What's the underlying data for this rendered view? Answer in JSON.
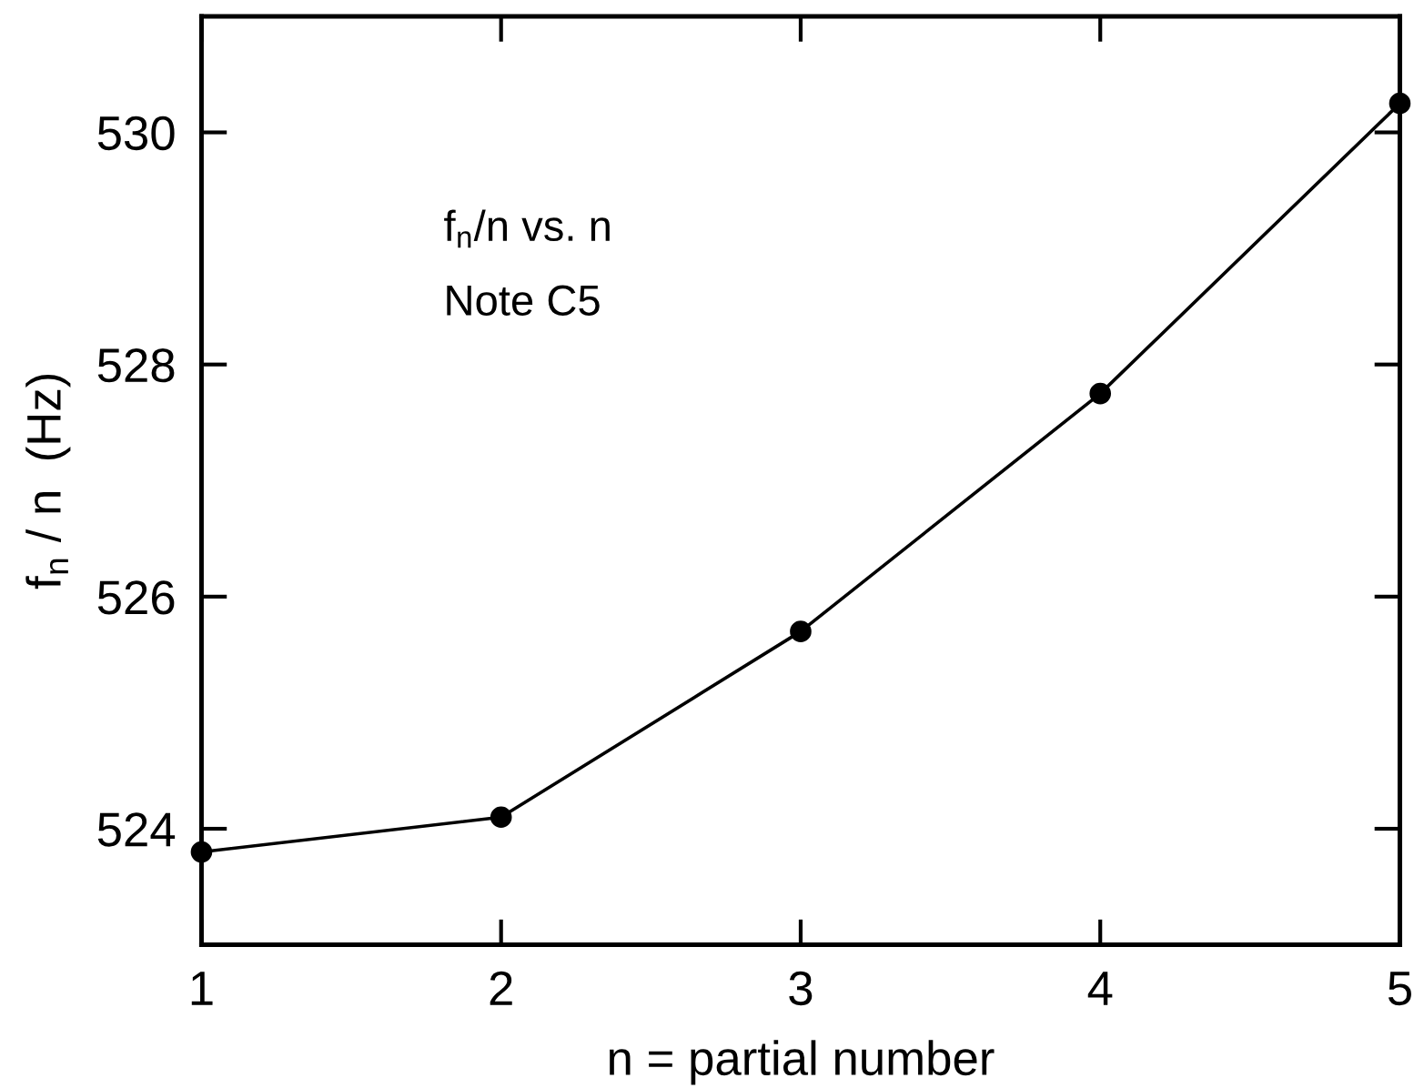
{
  "chart_data": {
    "type": "line",
    "xlabel": "n = partial number",
    "ylabel": "f$_{n}$ / n  (Hz)",
    "annotations": [
      "f$_{n}$/n vs. n",
      "Note C5"
    ],
    "x": [
      1,
      2,
      3,
      4,
      5
    ],
    "series": [
      {
        "color": "#000000",
        "values": [
          523.8,
          524.1,
          525.7,
          527.75,
          530.25
        ]
      }
    ],
    "xlim": [
      1,
      5
    ],
    "ylim": [
      523,
      531
    ],
    "xticks": [
      1,
      2,
      3,
      4,
      5
    ],
    "yticks": [
      524,
      526,
      528,
      530
    ],
    "marker": "circle",
    "line_style": "solid",
    "grid": false
  }
}
